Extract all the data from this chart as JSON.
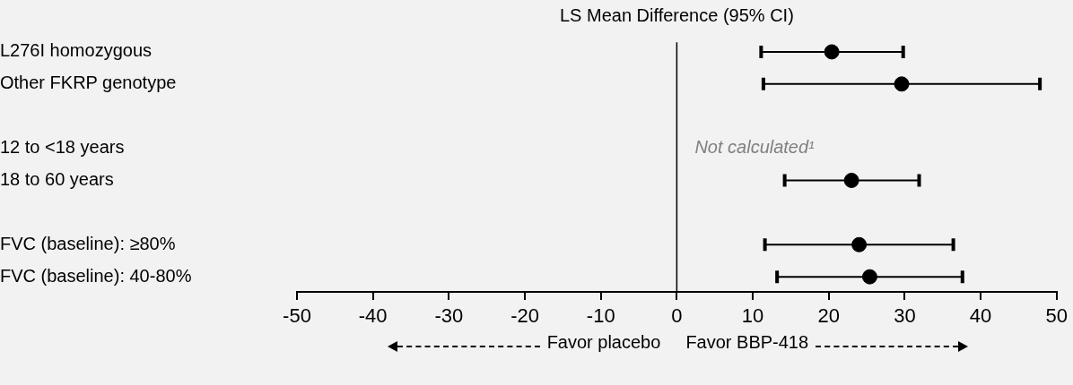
{
  "chart_data": {
    "type": "scatter",
    "orientation": "horizontal",
    "title": "LS Mean Difference (95% CI)",
    "categories": [
      "L276I homozygous",
      "Other FKRP genotype",
      null,
      "12 to <18 years",
      "18 to 60 years",
      null,
      "FVC (baseline): ≥80%",
      "FVC (baseline): 40-80%"
    ],
    "values": [
      20.4,
      29.6,
      null,
      null,
      23.0,
      null,
      24.0,
      25.4
    ],
    "errors": [
      [
        11.1,
        29.8
      ],
      [
        11.4,
        47.8
      ],
      null,
      null,
      [
        14.2,
        31.9
      ],
      null,
      [
        11.6,
        36.4
      ],
      [
        13.2,
        37.6
      ]
    ],
    "color": "#000000",
    "xlim": [
      -50,
      50
    ],
    "xticks": [
      -50,
      -40,
      -30,
      -20,
      -10,
      0,
      10,
      20,
      30,
      40,
      50
    ],
    "ref_lines": [
      {
        "axis": "x",
        "value": 0,
        "color": "#000000"
      }
    ],
    "annotations": [
      "Not calculated¹",
      "Favor placebo",
      "Favor BBP-418"
    ],
    "marker": "circle",
    "grid": false,
    "legend": false
  }
}
